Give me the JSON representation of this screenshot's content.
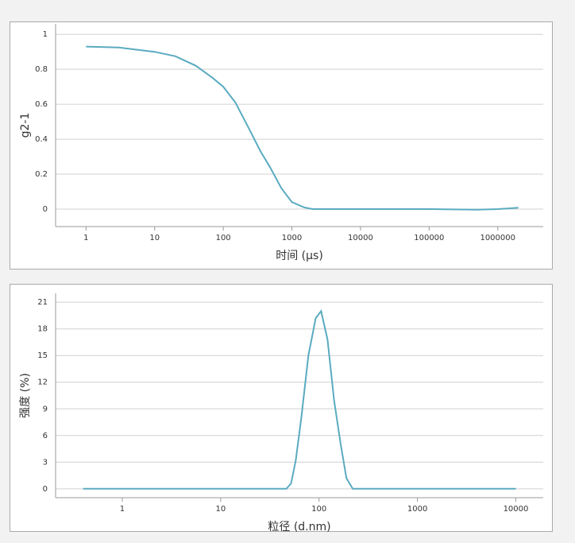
{
  "chart_data": [
    {
      "type": "line",
      "x_label": "时间 (µs)",
      "y_label": "g2-1",
      "xscale": "log",
      "grid": true,
      "xlim": [
        0.36,
        4600000
      ],
      "ylim": [
        -0.1,
        1.06
      ],
      "xticks": [
        1,
        10,
        100,
        1000,
        10000,
        100000,
        1000000
      ],
      "yticks": [
        0,
        0.2,
        0.4,
        0.6,
        0.8,
        1
      ],
      "x": [
        1,
        3,
        10,
        20,
        40,
        70,
        100,
        150,
        230,
        350,
        480,
        700,
        1000,
        1500,
        2000,
        5000,
        10000,
        50000,
        100000,
        500000,
        1000000,
        2000000
      ],
      "series": [
        {
          "name": "g2-1",
          "color": "#5aabc0",
          "values": [
            0.93,
            0.925,
            0.9,
            0.875,
            0.82,
            0.75,
            0.7,
            0.61,
            0.47,
            0.33,
            0.24,
            0.12,
            0.04,
            0.01,
            0.0,
            0.0,
            0.0,
            0.0,
            0.0,
            -0.003,
            0.0,
            0.008
          ]
        }
      ]
    },
    {
      "type": "line",
      "x_label": "粒径 (d.nm)",
      "y_label": "强度 (%)",
      "xscale": "log",
      "grid": true,
      "xlim": [
        0.21,
        19000
      ],
      "ylim": [
        -1,
        22
      ],
      "xticks": [
        1,
        10,
        100,
        1000,
        10000
      ],
      "yticks": [
        0,
        3,
        6,
        9,
        12,
        15,
        18,
        21
      ],
      "x": [
        0.4,
        1,
        10,
        40,
        46.6,
        52,
        58,
        66,
        78,
        92.5,
        105,
        122,
        142,
        166,
        190,
        220,
        1000,
        10000
      ],
      "series": [
        {
          "name": "强度",
          "color": "#5aabc0",
          "values": [
            0,
            0,
            0,
            0,
            0,
            0.6,
            3.2,
            8,
            15,
            19.2,
            20,
            16.8,
            10,
            5,
            1.2,
            0,
            0,
            0
          ]
        }
      ]
    }
  ]
}
